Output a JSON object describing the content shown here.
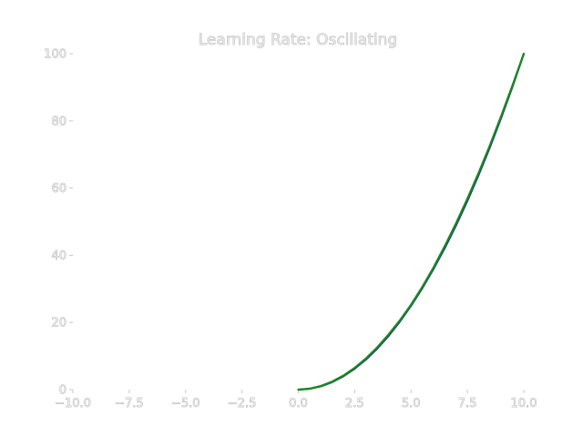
{
  "chart_data": {
    "type": "line",
    "title": "Learning Rate: Oscillating",
    "xlabel": "",
    "ylabel": "",
    "xlim": [
      -10.0,
      10.0
    ],
    "ylim": [
      0,
      100
    ],
    "x_ticks": [
      "−10.0",
      "−7.5",
      "−5.0",
      "−2.5",
      "0.0",
      "2.5",
      "5.0",
      "7.5",
      "10.0"
    ],
    "y_ticks": [
      "0",
      "20",
      "40",
      "60",
      "80",
      "100"
    ],
    "grid": false,
    "legend": "none",
    "series": [
      {
        "color": "#1f2fa0",
        "x": [
          0,
          0.5,
          1,
          1.5,
          2,
          2.5,
          3,
          3.5,
          4,
          4.5,
          5,
          5.5,
          6,
          6.5,
          7,
          7.5,
          8,
          8.5,
          9,
          9.5,
          10
        ],
        "y": [
          0,
          0.25,
          1,
          2.25,
          4,
          6.25,
          9,
          12.25,
          16,
          20.25,
          25,
          30.25,
          36,
          42.25,
          49,
          56.25,
          64,
          72.25,
          81,
          90.25,
          100
        ]
      },
      {
        "color": "#1a8a1a",
        "x": [
          0,
          0.5,
          1,
          1.5,
          2,
          2.5,
          3,
          3.5,
          4,
          4.5,
          5,
          5.5,
          6,
          6.5,
          7,
          7.5,
          8,
          8.5,
          9,
          9.5,
          10
        ],
        "y": [
          0,
          0.3,
          1.1,
          2.4,
          4.2,
          6.5,
          9.3,
          12.6,
          16.4,
          20.6,
          25.3,
          30.6,
          36.4,
          42.8,
          49.6,
          56.9,
          64.6,
          72.8,
          81.5,
          90.6,
          100
        ]
      }
    ]
  }
}
